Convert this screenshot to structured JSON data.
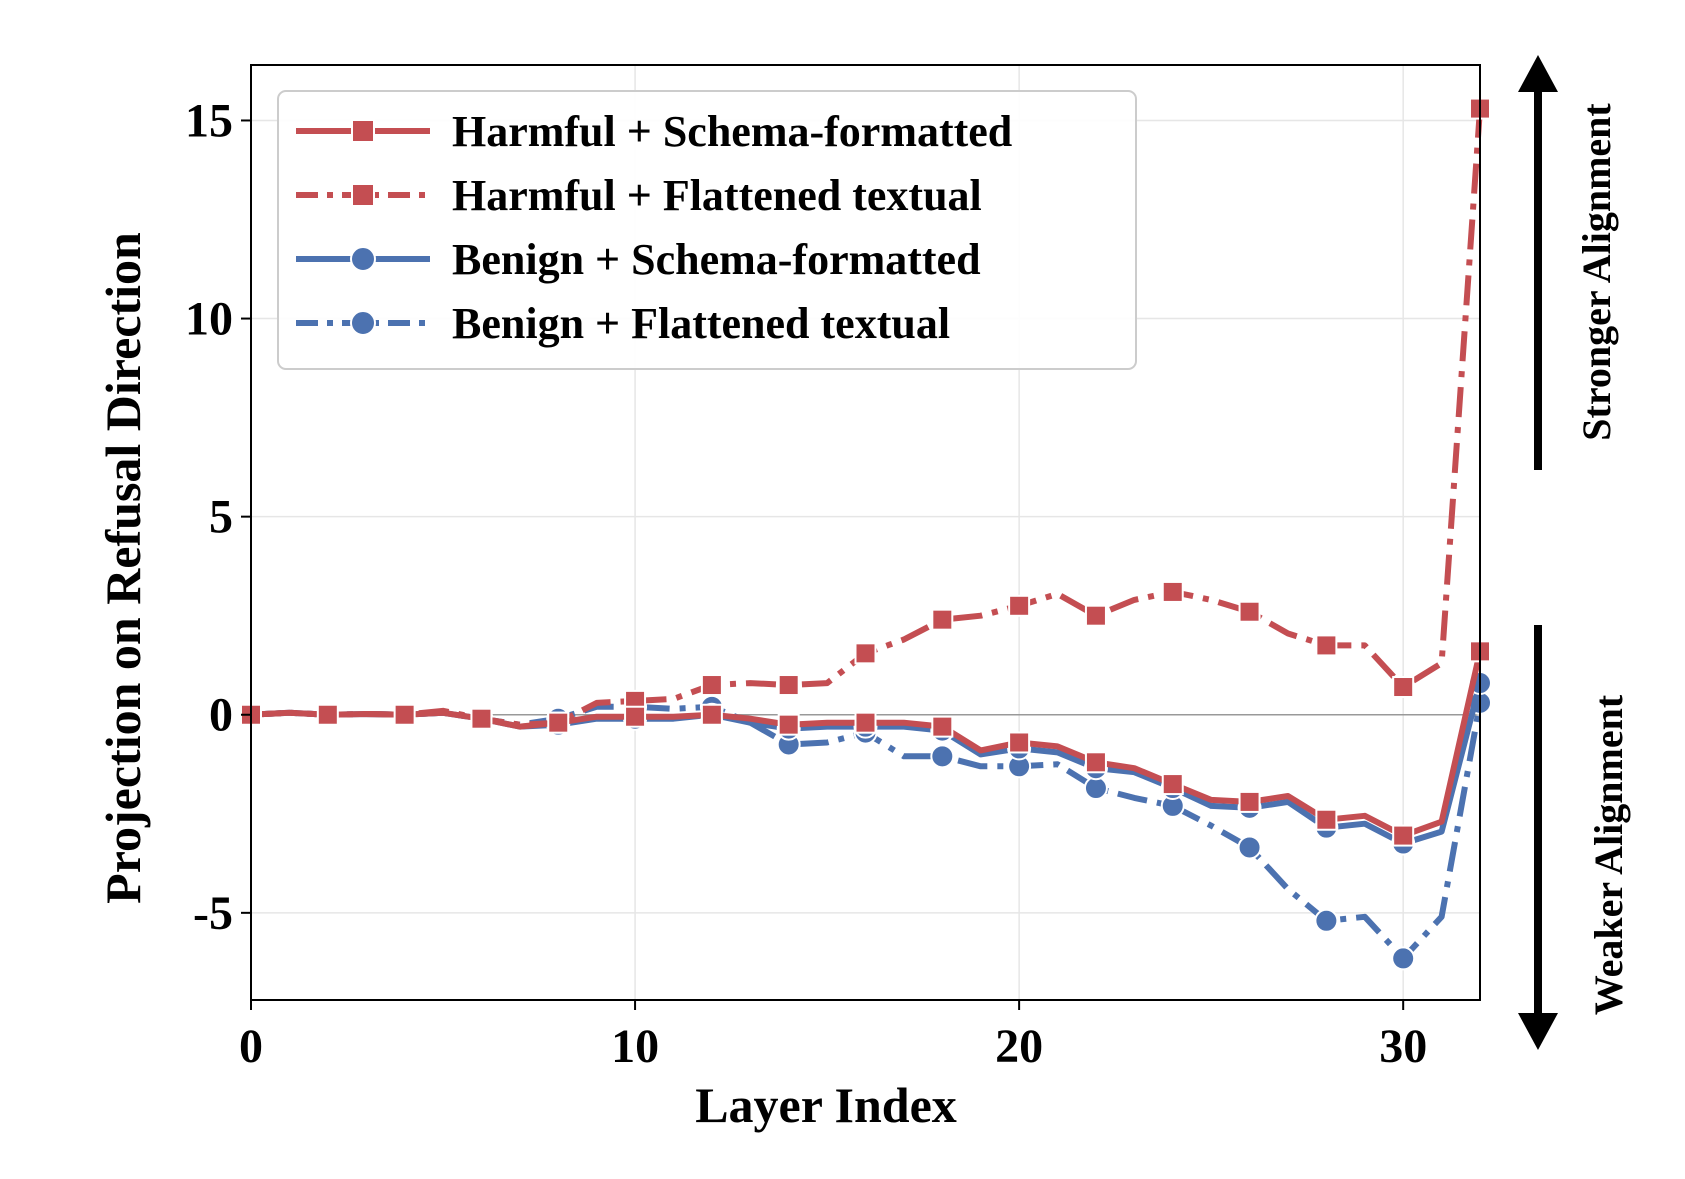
{
  "chart_data": {
    "type": "line",
    "xlabel": "Layer Index",
    "ylabel": "Projection on Refusal Direction",
    "xlim": [
      0,
      32
    ],
    "ylim": [
      -7.2,
      16.4
    ],
    "xticks": [
      0,
      10,
      20,
      30
    ],
    "yticks": [
      -5,
      0,
      5,
      10,
      15
    ],
    "ytick_labels": [
      "-5",
      "0",
      "5",
      "10",
      "15"
    ],
    "grid": true,
    "legend_position": "top-left",
    "x": [
      0,
      1,
      2,
      3,
      4,
      5,
      6,
      7,
      8,
      9,
      10,
      11,
      12,
      13,
      14,
      15,
      16,
      17,
      18,
      19,
      20,
      21,
      22,
      23,
      24,
      25,
      26,
      27,
      28,
      29,
      30,
      31,
      32
    ],
    "series": [
      {
        "name": "Harmful + Schema-formatted",
        "color": "#c44e52",
        "dash": "solid",
        "marker": "square",
        "values": [
          0,
          0.05,
          0,
          0.02,
          0,
          0.05,
          -0.1,
          -0.3,
          -0.2,
          -0.05,
          -0.05,
          -0.05,
          0,
          -0.1,
          -0.25,
          -0.2,
          -0.2,
          -0.2,
          -0.3,
          -0.9,
          -0.7,
          -0.8,
          -1.2,
          -1.35,
          -1.75,
          -2.15,
          -2.2,
          -2.05,
          -2.65,
          -2.55,
          -3.05,
          -2.7,
          1.6
        ]
      },
      {
        "name": "Harmful + Flattened textual",
        "color": "#c44e52",
        "dash": "dashdot",
        "marker": "square",
        "values": [
          0,
          0.05,
          0,
          0.02,
          0,
          0.1,
          -0.1,
          -0.25,
          -0.2,
          0.3,
          0.35,
          0.4,
          0.75,
          0.8,
          0.75,
          0.8,
          1.55,
          1.9,
          2.4,
          2.5,
          2.75,
          3.05,
          2.5,
          2.9,
          3.1,
          2.9,
          2.6,
          2.05,
          1.75,
          1.75,
          0.7,
          1.3,
          15.3
        ]
      },
      {
        "name": "Benign + Schema-formatted",
        "color": "#4c72b0",
        "dash": "solid",
        "marker": "circle",
        "values": [
          0,
          0.05,
          0,
          0.02,
          0,
          0.05,
          -0.1,
          -0.3,
          -0.25,
          -0.1,
          -0.1,
          -0.1,
          0,
          -0.2,
          -0.35,
          -0.3,
          -0.3,
          -0.3,
          -0.4,
          -1.0,
          -0.85,
          -0.95,
          -1.35,
          -1.45,
          -1.85,
          -2.3,
          -2.35,
          -2.2,
          -2.85,
          -2.75,
          -3.25,
          -2.95,
          0.8
        ]
      },
      {
        "name": "Benign + Flattened textual",
        "color": "#4c72b0",
        "dash": "dashdot",
        "marker": "circle",
        "values": [
          0,
          0.05,
          0,
          0.02,
          0,
          0.05,
          -0.1,
          -0.25,
          -0.1,
          0.2,
          0.2,
          0.15,
          0.2,
          -0.2,
          -0.75,
          -0.7,
          -0.45,
          -1.05,
          -1.05,
          -1.3,
          -1.3,
          -1.25,
          -1.85,
          -2.1,
          -2.3,
          -2.8,
          -3.35,
          -4.4,
          -5.2,
          -5.1,
          -6.15,
          -5.1,
          0.3
        ]
      }
    ]
  },
  "annotations": {
    "top": "Stronger Alignment",
    "bottom": "Weaker Alignment"
  }
}
